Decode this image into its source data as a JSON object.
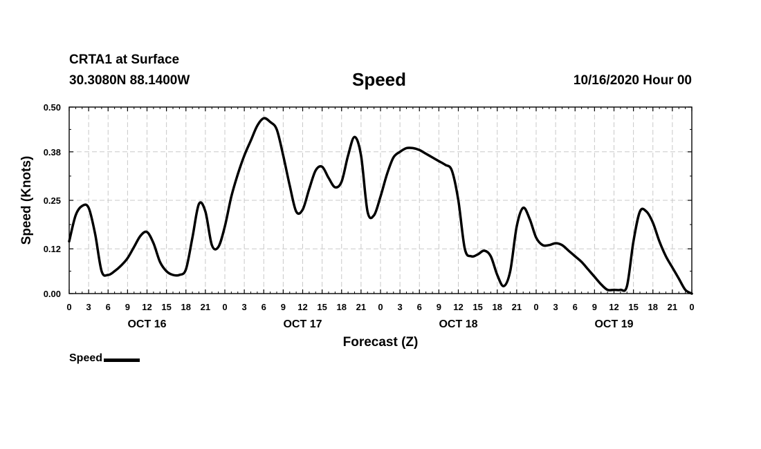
{
  "header": {
    "station": "CRTA1 at Surface",
    "coords": "30.3080N 88.1400W",
    "title": "Speed",
    "run": "10/16/2020 Hour 00"
  },
  "chart_data": {
    "type": "line",
    "title": "Speed",
    "xlabel": "Forecast (Z)",
    "ylabel": "Speed (Knots)",
    "ylim": [
      0,
      0.5
    ],
    "xlim": [
      0,
      96
    ],
    "grid": true,
    "y_ticks": [
      0.0,
      0.12,
      0.25,
      0.38,
      0.5
    ],
    "y_tick_labels": [
      "0.00",
      "0.12",
      "0.25",
      "0.38",
      "0.50"
    ],
    "x_ticks": [
      0,
      3,
      6,
      9,
      12,
      15,
      18,
      21,
      24,
      27,
      30,
      33,
      36,
      39,
      42,
      45,
      48,
      51,
      54,
      57,
      60,
      63,
      66,
      69,
      72,
      75,
      78,
      81,
      84,
      87,
      90,
      93,
      96
    ],
    "x_tick_labels": [
      "0",
      "3",
      "6",
      "9",
      "12",
      "15",
      "18",
      "21",
      "0",
      "3",
      "6",
      "9",
      "12",
      "15",
      "18",
      "21",
      "0",
      "3",
      "6",
      "9",
      "12",
      "15",
      "18",
      "21",
      "0",
      "3",
      "6",
      "9",
      "12",
      "15",
      "18",
      "21",
      "0"
    ],
    "day_labels": [
      {
        "hour": 12,
        "label": "OCT 16"
      },
      {
        "hour": 36,
        "label": "OCT 17"
      },
      {
        "hour": 60,
        "label": "OCT 18"
      },
      {
        "hour": 84,
        "label": "OCT 19"
      }
    ],
    "legend": {
      "position": "bottom-left",
      "entries": [
        "Speed"
      ]
    },
    "series": [
      {
        "name": "Speed",
        "x": [
          0,
          1,
          2,
          3,
          4,
          5,
          6,
          7,
          8,
          9,
          10,
          11,
          12,
          13,
          14,
          15,
          16,
          17,
          18,
          19,
          20,
          21,
          22,
          23,
          24,
          25,
          26,
          27,
          28,
          29,
          30,
          31,
          32,
          33,
          34,
          35,
          36,
          37,
          38,
          39,
          40,
          41,
          42,
          43,
          44,
          45,
          46,
          47,
          48,
          49,
          50,
          51,
          52,
          53,
          54,
          55,
          56,
          57,
          58,
          59,
          60,
          61,
          62,
          63,
          64,
          65,
          66,
          67,
          68,
          69,
          70,
          71,
          72,
          73,
          74,
          75,
          76,
          77,
          78,
          79,
          80,
          81,
          82,
          83,
          84,
          85,
          86,
          87,
          88,
          89,
          90,
          91,
          92,
          93,
          94,
          95,
          96
        ],
        "values": [
          0.14,
          0.21,
          0.235,
          0.23,
          0.16,
          0.06,
          0.05,
          0.06,
          0.075,
          0.095,
          0.125,
          0.155,
          0.165,
          0.135,
          0.085,
          0.06,
          0.05,
          0.05,
          0.065,
          0.15,
          0.24,
          0.22,
          0.13,
          0.125,
          0.18,
          0.26,
          0.32,
          0.37,
          0.41,
          0.45,
          0.47,
          0.46,
          0.44,
          0.37,
          0.29,
          0.22,
          0.225,
          0.28,
          0.33,
          0.34,
          0.31,
          0.285,
          0.3,
          0.37,
          0.42,
          0.37,
          0.22,
          0.21,
          0.26,
          0.32,
          0.365,
          0.38,
          0.39,
          0.39,
          0.385,
          0.375,
          0.365,
          0.355,
          0.345,
          0.33,
          0.25,
          0.12,
          0.1,
          0.105,
          0.115,
          0.1,
          0.05,
          0.02,
          0.06,
          0.18,
          0.23,
          0.2,
          0.15,
          0.13,
          0.13,
          0.135,
          0.13,
          0.115,
          0.1,
          0.085,
          0.065,
          0.045,
          0.025,
          0.01,
          0.01,
          0.01,
          0.02,
          0.14,
          0.22,
          0.22,
          0.19,
          0.14,
          0.1,
          0.07,
          0.04,
          0.01,
          0.0
        ]
      }
    ]
  }
}
